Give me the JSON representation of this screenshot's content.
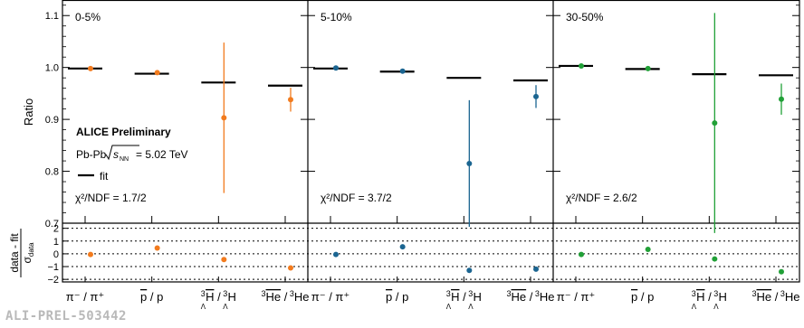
{
  "chart_data": {
    "type": "scatter",
    "experiment_label": "ALICE Preliminary",
    "system_label": "Pb-Pb",
    "energy_label": "= 5.02 TeV",
    "legend_fit": "fit",
    "ylabel": "Ratio",
    "residual_ylabel_num": "data - fit",
    "residual_ylabel_den": "σ",
    "residual_ylabel_den_sub": "data",
    "ylim": [
      0.7,
      1.13
    ],
    "yticks": [
      "0.7",
      "0.8",
      "0.9",
      "1.0",
      "1.1"
    ],
    "residual_ylim": [
      -2.2,
      2.4
    ],
    "residual_yticks": [
      "−2",
      "−1",
      "0",
      "1",
      "2"
    ],
    "categories": [
      "π⁻ / π⁺",
      "p̄ / p",
      "H̄ / H",
      "He / He"
    ],
    "category_parts": [
      {
        "main": "π⁻ / π⁺"
      },
      {
        "bar": "p",
        "main": "/ p"
      },
      {
        "pre": "3",
        "presub": "Λ",
        "bar": "H",
        "main": "/",
        "pre2": "3",
        "presub2": "Λ",
        "main2": "H"
      },
      {
        "pre": "3",
        "bar": "He",
        "main": "/",
        "pre2": "3",
        "main2": "He"
      }
    ],
    "panels": [
      {
        "centrality": "0-5%",
        "chi2": "χ²/NDF = 1.7/2",
        "color": "#f27b1e",
        "values": [
          0.998,
          0.99,
          0.903,
          0.938
        ],
        "errors": [
          0.003,
          0.004,
          0.145,
          0.023
        ],
        "fit": [
          0.998,
          0.988,
          0.971,
          0.965
        ],
        "residuals": [
          -0.05,
          0.45,
          -0.45,
          -1.1
        ]
      },
      {
        "centrality": "5-10%",
        "chi2": "χ²/NDF = 3.7/2",
        "color": "#1b6591",
        "values": [
          0.999,
          0.993,
          0.815,
          0.944
        ],
        "errors": [
          0.003,
          0.004,
          0.122,
          0.022
        ],
        "fit": [
          0.998,
          0.992,
          0.98,
          0.975
        ],
        "residuals": [
          -0.05,
          0.55,
          -1.3,
          -1.2
        ]
      },
      {
        "centrality": "30-50%",
        "chi2": "χ²/NDF = 2.6/2",
        "color": "#21a037",
        "values": [
          1.003,
          0.998,
          0.893,
          0.939
        ],
        "errors": [
          0.003,
          0.004,
          0.212,
          0.03
        ],
        "fit": [
          1.003,
          0.997,
          0.987,
          0.985
        ],
        "residuals": [
          -0.05,
          0.35,
          -0.4,
          -1.4
        ]
      }
    ]
  },
  "footer": {
    "preliminary_id": "ALI-PREL-503442"
  }
}
